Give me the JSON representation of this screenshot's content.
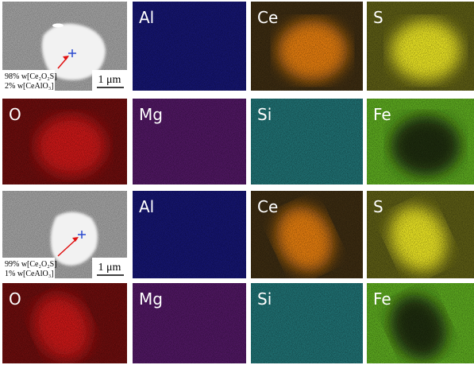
{
  "rows": [
    {
      "panels": [
        {
          "kind": "sem",
          "scale_bar": "1 μm",
          "composition": [
            "98% w[Ce₂O₂S]",
            "2% w[CeAlO₃]"
          ]
        },
        {
          "kind": "map",
          "label": "Al",
          "color": "#14146e",
          "spot": "#14146e"
        },
        {
          "kind": "map",
          "label": "Ce",
          "color": "#3a2a10",
          "spot": "#e07a10"
        },
        {
          "kind": "map",
          "label": "S",
          "color": "#5a5a14",
          "spot": "#e6e020"
        }
      ]
    },
    {
      "panels": [
        {
          "kind": "map",
          "label": "O",
          "color": "#6a0c0c",
          "spot": "#c81818"
        },
        {
          "kind": "map",
          "label": "Mg",
          "color": "#4e1660",
          "spot": "#4e1660"
        },
        {
          "kind": "map",
          "label": "Si",
          "color": "#1e6e70",
          "spot": "#1e6e70"
        },
        {
          "kind": "map",
          "label": "Fe",
          "color": "#5aa61e",
          "spot": "#1a2a0a"
        }
      ]
    },
    {
      "panels": [
        {
          "kind": "sem",
          "scale_bar": "1 μm",
          "composition": [
            "99% w[Ce₂O₂S]",
            "1% w[CeAlO₃]"
          ]
        },
        {
          "kind": "map",
          "label": "Al",
          "color": "#14146e",
          "spot": "#14146e"
        },
        {
          "kind": "map",
          "label": "Ce",
          "color": "#3a2a10",
          "spot": "#e07a10"
        },
        {
          "kind": "map",
          "label": "S",
          "color": "#5a5a14",
          "spot": "#e6e020"
        }
      ]
    },
    {
      "panels": [
        {
          "kind": "map",
          "label": "O",
          "color": "#6a0c0c",
          "spot": "#c81818"
        },
        {
          "kind": "map",
          "label": "Mg",
          "color": "#4e1660",
          "spot": "#4e1660"
        },
        {
          "kind": "map",
          "label": "Si",
          "color": "#1e6e70",
          "spot": "#1e6e70"
        },
        {
          "kind": "map",
          "label": "Fe",
          "color": "#5aa61e",
          "spot": "#1a2a0a"
        }
      ]
    }
  ]
}
